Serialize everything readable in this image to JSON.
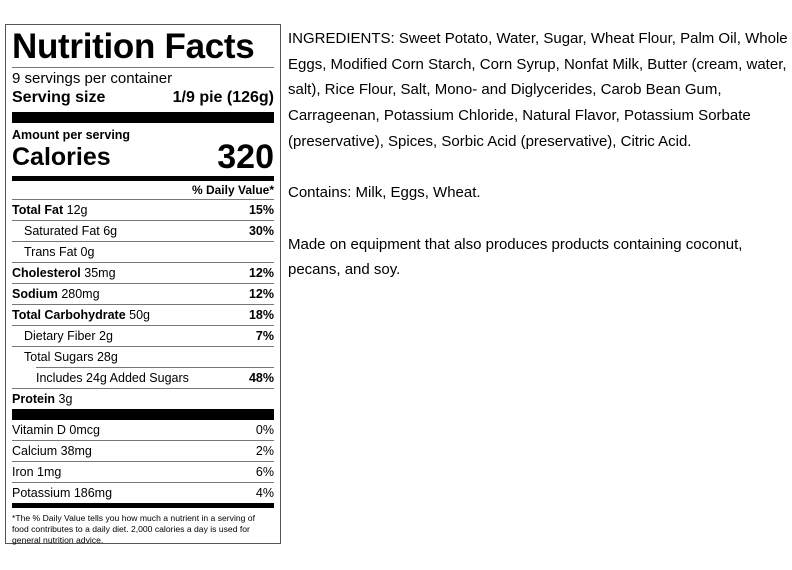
{
  "label": {
    "title": "Nutrition Facts",
    "servings": "9 servings per container",
    "serving_size_label": "Serving size",
    "serving_size_value": "1/9 pie (126g)",
    "amount_per_serving": "Amount per serving",
    "calories_label": "Calories",
    "calories_value": "320",
    "daily_value_header": "% Daily Value*",
    "nutrients": [
      {
        "name": "Total Fat",
        "amount": "12g",
        "pct": "15%"
      },
      {
        "name": "Saturated Fat 6g",
        "pct": "30%"
      },
      {
        "name": "Trans Fat 0g"
      },
      {
        "name": "Cholesterol",
        "amount": "35mg",
        "pct": "12%"
      },
      {
        "name": "Sodium",
        "amount": "280mg",
        "pct": "12%"
      },
      {
        "name": "Total Carbohydrate",
        "amount": "50g",
        "pct": "18%"
      },
      {
        "name": "Dietary Fiber 2g",
        "pct": "7%"
      },
      {
        "name": "Total Sugars 28g"
      },
      {
        "name": "Includes 24g Added Sugars",
        "pct": "48%"
      },
      {
        "name": "Protein",
        "amount": "3g"
      }
    ],
    "vitamins": [
      {
        "name": "Vitamin D 0mcg",
        "pct": "0%"
      },
      {
        "name": "Calcium 38mg",
        "pct": "2%"
      },
      {
        "name": "Iron 1mg",
        "pct": "6%"
      },
      {
        "name": "Potassium 186mg",
        "pct": "4%"
      }
    ],
    "footnote": "*The % Daily Value tells you how much a nutrient in a serving of food contributes to a daily diet. 2,000 calories a day is used for general nutrition advice."
  },
  "text": {
    "ingredients": "INGREDIENTS: Sweet Potato, Water, Sugar, Wheat Flour, Palm Oil, Whole Eggs, Modified Corn Starch, Corn Syrup, Nonfat Milk, Butter (cream, water, salt), Rice Flour, Salt,  Mono- and Diglycerides, Carob Bean Gum, Carrageenan, Potassium Chloride, Natural Flavor, Potassium Sorbate (preservative), Spices, Sorbic Acid (preservative), Citric Acid.",
    "contains": "Contains: Milk, Eggs, Wheat.",
    "equipment": "Made on equipment that also produces products containing coconut, pecans, and soy."
  }
}
